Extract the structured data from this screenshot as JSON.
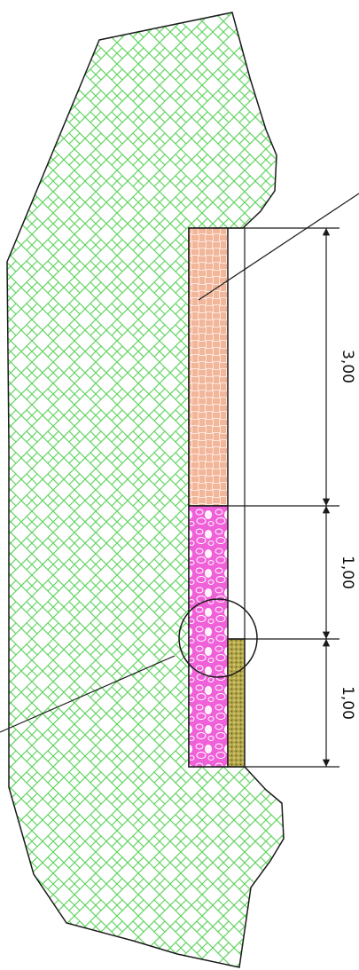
{
  "dimensions": [
    {
      "id": "dim-1",
      "label": "3,00"
    },
    {
      "id": "dim-2",
      "label": "1,00"
    },
    {
      "id": "dim-3",
      "label": "1,00"
    }
  ],
  "colors": {
    "terrain_fill": "#ffffff",
    "terrain_hatch": "#5fd35f",
    "brick_fill": "#fde6dc",
    "brick_hatch": "#e8855a",
    "pebble_fill": "#f060d8",
    "pebble_hatch": "#ffffff",
    "dotted_fill": "#b5a84a",
    "dotted_hatch": "#5b5320",
    "line": "#1a1a1a"
  },
  "layers": [
    {
      "id": "layer-brick",
      "pattern": "woven-brick",
      "thickness": 3.0
    },
    {
      "id": "layer-pebble",
      "pattern": "pebbles",
      "thickness": 2.0
    },
    {
      "id": "layer-dotted",
      "pattern": "dotted-fill",
      "thickness": 1.0
    }
  ]
}
